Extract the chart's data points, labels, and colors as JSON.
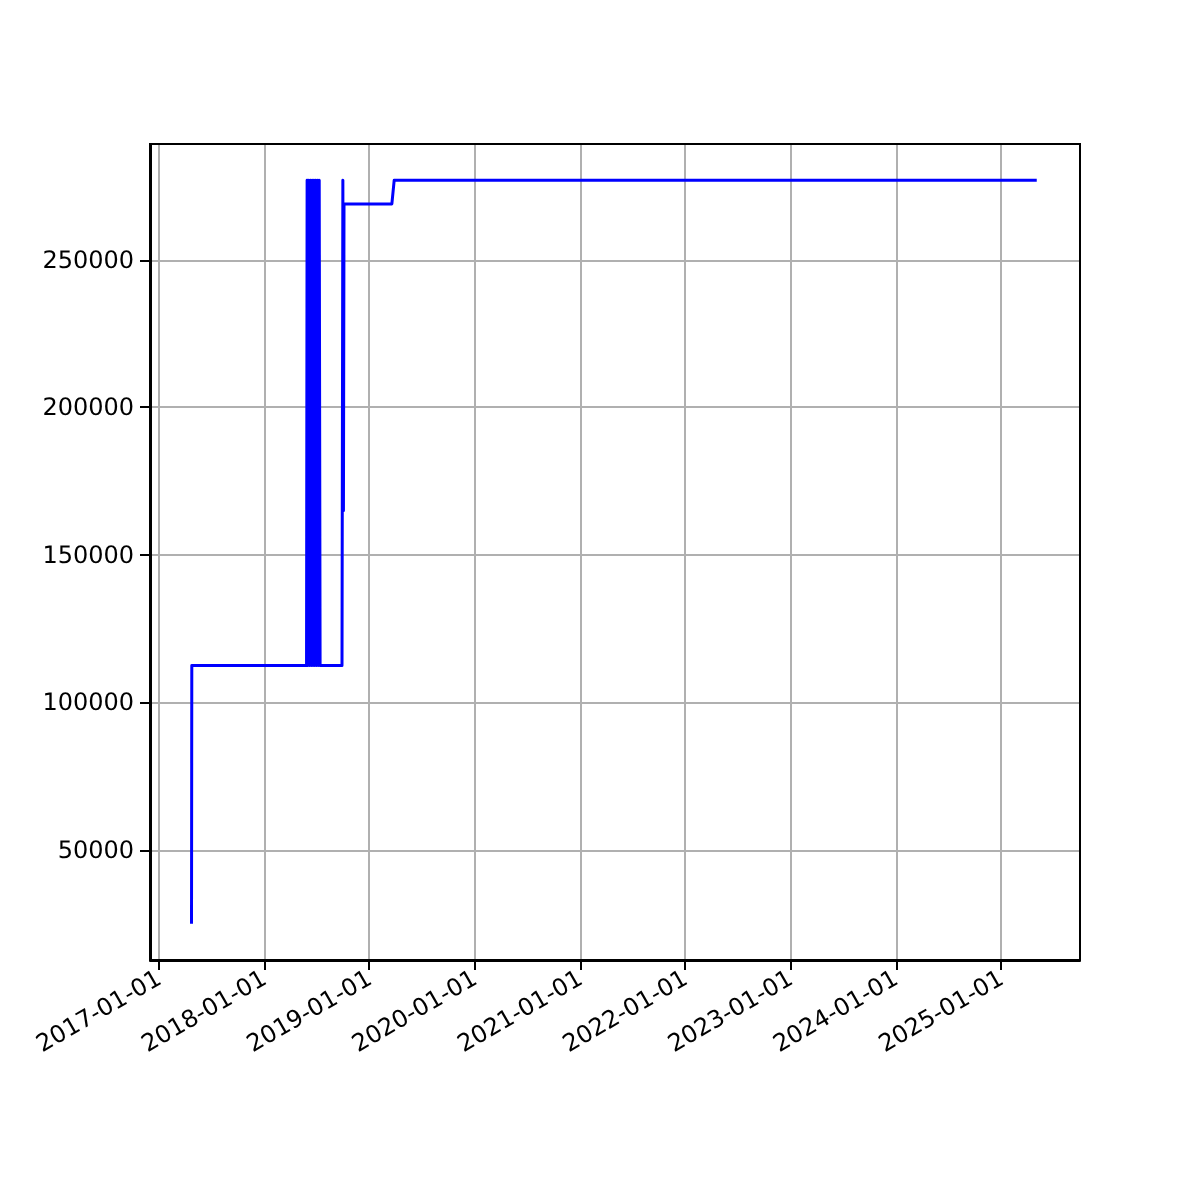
{
  "chart_data": {
    "type": "line",
    "x": [
      "2017-04-24",
      "2017-04-25",
      "2018-05-28",
      "2018-05-30",
      "2018-06-02",
      "2018-06-05",
      "2018-06-08",
      "2018-06-11",
      "2018-06-14",
      "2018-06-17",
      "2018-06-20",
      "2018-06-23",
      "2018-06-26",
      "2018-06-29",
      "2018-07-02",
      "2018-07-05",
      "2018-07-08",
      "2018-07-11",
      "2018-07-14",
      "2018-09-28",
      "2018-10-01",
      "2018-10-03",
      "2018-10-05",
      "2019-03-20",
      "2019-03-28",
      "2025-05-04"
    ],
    "series": [
      {
        "color": "#0000ff",
        "values": [
          25000,
          112500,
          112500,
          277000,
          112500,
          277000,
          112500,
          277000,
          112500,
          277000,
          112500,
          277000,
          112500,
          277000,
          112500,
          277000,
          112500,
          277000,
          112500,
          112500,
          277000,
          165000,
          269000,
          269000,
          277000,
          277000
        ]
      }
    ],
    "xlim": [
      "2016-12-01",
      "2025-10-01"
    ],
    "xticks": [
      "2017-01-01",
      "2018-01-01",
      "2019-01-01",
      "2020-01-01",
      "2021-01-01",
      "2022-01-01",
      "2023-01-01",
      "2024-01-01",
      "2025-01-01"
    ],
    "ylim": [
      12700,
      289300
    ],
    "yticks": [
      50000,
      100000,
      150000,
      200000,
      250000
    ],
    "grid": true,
    "line_style": "solid",
    "marker": "none"
  }
}
